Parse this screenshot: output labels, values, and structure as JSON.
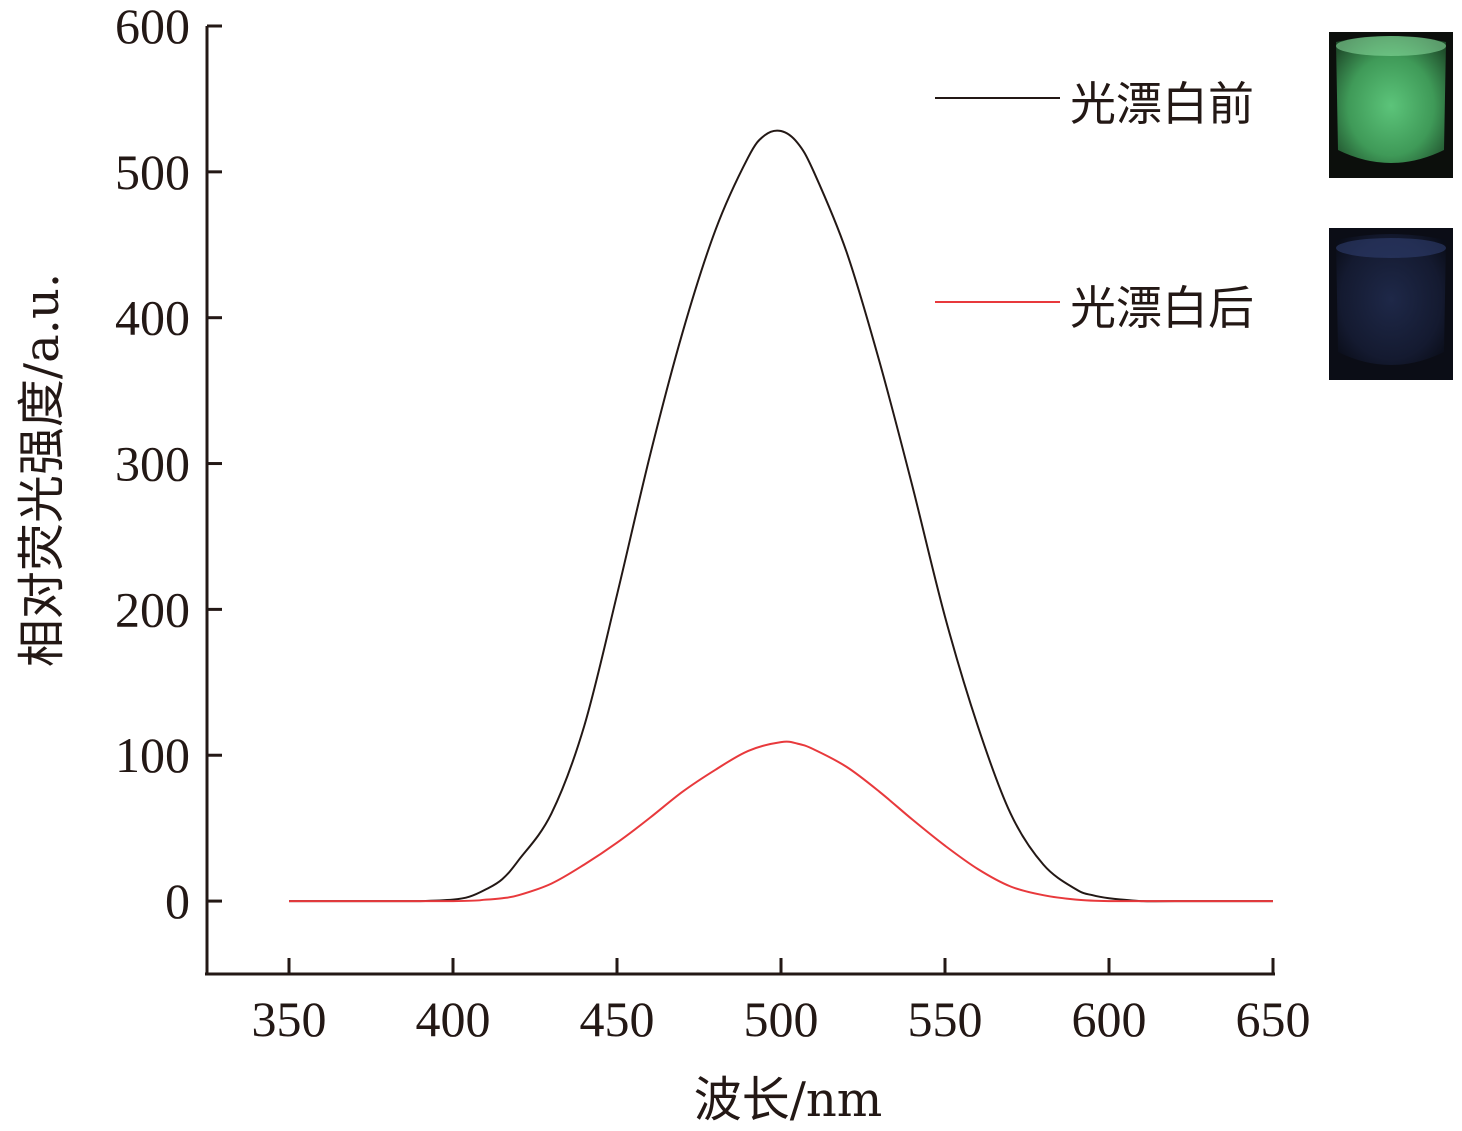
{
  "chart_data": {
    "type": "line",
    "title": "",
    "xlabel": "波长/nm",
    "ylabel": "相对荧光强度/a.u.",
    "xlim": [
      325,
      650
    ],
    "ylim": [
      -50,
      600
    ],
    "xticks": [
      350,
      400,
      450,
      500,
      550,
      600,
      650
    ],
    "yticks": [
      0,
      100,
      200,
      300,
      400,
      500,
      600
    ],
    "grid": false,
    "legend_position": "top-right",
    "series": [
      {
        "name": "光漂白前",
        "color": "#231815",
        "x": [
          350,
          380,
          390,
          400,
          405,
          410,
          415,
          420,
          430,
          440,
          450,
          460,
          470,
          480,
          490,
          495,
          500,
          505,
          510,
          520,
          530,
          540,
          550,
          560,
          570,
          580,
          590,
          595,
          600,
          610,
          620,
          650
        ],
        "y": [
          0,
          0,
          0,
          1,
          3,
          8,
          15,
          28,
          60,
          120,
          210,
          305,
          390,
          460,
          510,
          525,
          528,
          520,
          500,
          445,
          370,
          285,
          195,
          120,
          60,
          25,
          8,
          4,
          2,
          0,
          0,
          0
        ]
      },
      {
        "name": "光漂白后",
        "color": "#e8393c",
        "x": [
          350,
          400,
          410,
          415,
          420,
          430,
          440,
          450,
          460,
          470,
          480,
          490,
          500,
          505,
          510,
          520,
          530,
          540,
          550,
          560,
          570,
          580,
          590,
          600,
          620,
          650
        ],
        "y": [
          0,
          0,
          1,
          2,
          4,
          12,
          25,
          40,
          57,
          75,
          90,
          103,
          109,
          108,
          104,
          92,
          75,
          56,
          38,
          22,
          10,
          4,
          1,
          0,
          0,
          0
        ]
      }
    ]
  },
  "inset_images": [
    {
      "description_color": "#4fb36a",
      "label_ref": "光漂白前"
    },
    {
      "description_color": "#1b2240",
      "label_ref": "光漂白后"
    }
  ]
}
